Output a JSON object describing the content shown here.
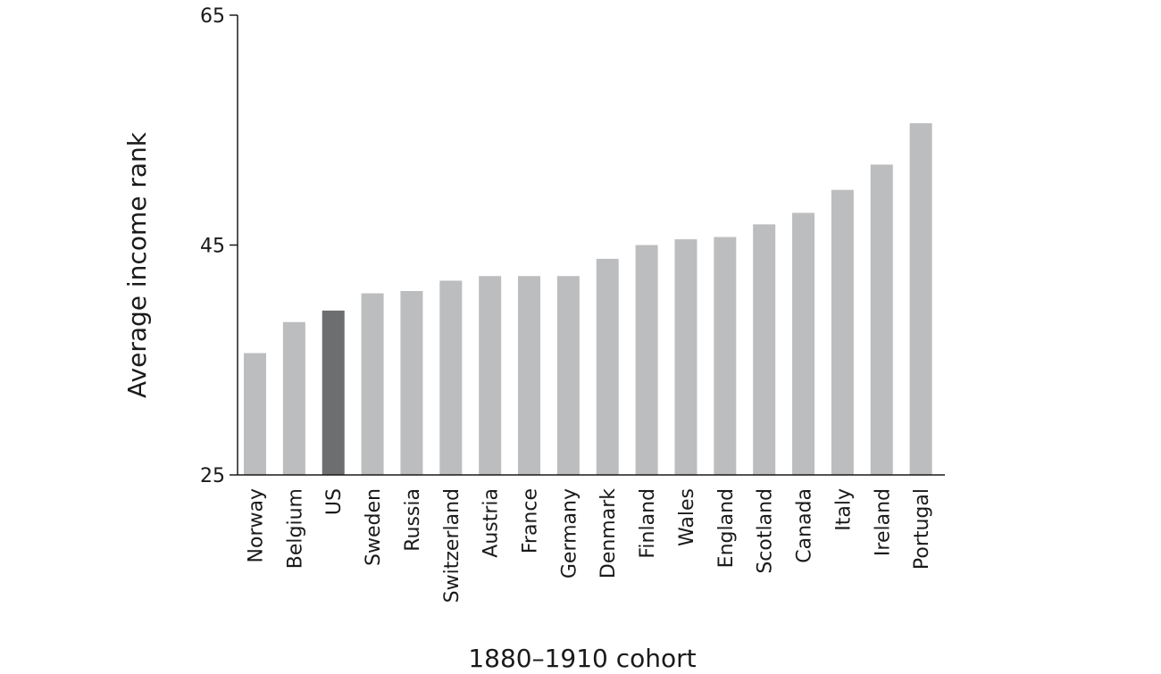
{
  "chart_data": {
    "type": "bar",
    "title": "",
    "xlabel": "1880–1910 cohort",
    "ylabel": "Average income rank",
    "ylim": [
      25,
      65
    ],
    "yticks": [
      25,
      45,
      65
    ],
    "grid": false,
    "categories": [
      "Norway",
      "Belgium",
      "US",
      "Sweden",
      "Russia",
      "Switzerland",
      "Austria",
      "France",
      "Germany",
      "Denmark",
      "Finland",
      "Wales",
      "England",
      "Scotland",
      "Canada",
      "Italy",
      "Ireland",
      "Portugal"
    ],
    "values": [
      35.6,
      38.3,
      39.3,
      40.8,
      41.0,
      41.9,
      42.3,
      42.3,
      42.3,
      43.8,
      45.0,
      45.5,
      45.7,
      46.8,
      47.8,
      49.8,
      52.0,
      55.6
    ],
    "colors": {
      "default": "#bcbdbf",
      "highlight": "#6d6e70",
      "axis": "#1a1a1a"
    },
    "highlight_category": "US"
  }
}
